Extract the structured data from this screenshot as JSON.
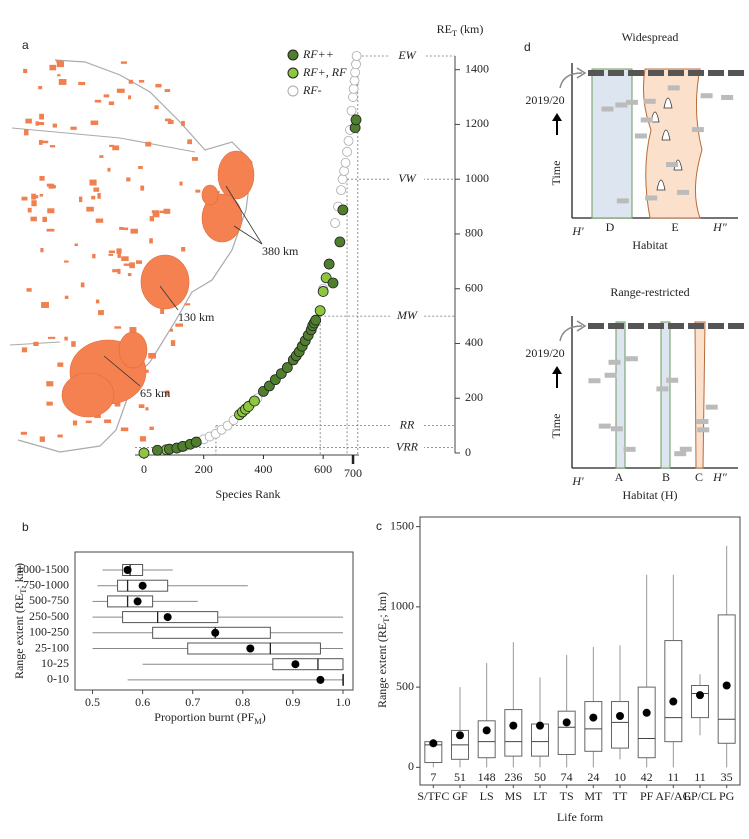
{
  "chart_data": [
    {
      "type": "scatter",
      "panel": "a",
      "y_label": [
        "RE",
        "T",
        " (km)"
      ],
      "x_label": "Species Rank",
      "xlim": [
        -30,
        720
      ],
      "ylim": [
        0,
        1450
      ],
      "xticks": [
        0,
        200,
        400,
        600,
        700
      ],
      "highlight_xtick": 700,
      "yticks": [
        0,
        200,
        400,
        600,
        800,
        1000,
        1200,
        1400
      ],
      "thresholds": [
        {
          "label": "EW",
          "value": 1450,
          "rank": 716
        },
        {
          "label": "VW",
          "value": 1000,
          "rank": 680
        },
        {
          "label": "MW",
          "value": 500,
          "rank": 590
        },
        {
          "label": "RR",
          "value": 100,
          "rank": 241
        },
        {
          "label": "VRR",
          "value": 20
        }
      ],
      "annotations": [
        "380 km",
        "130 km",
        "65 km"
      ],
      "series": [
        {
          "name": "RF-",
          "color": "#ffffff",
          "x": [
            120,
            140,
            160,
            180,
            200,
            220,
            240,
            260,
            280,
            300,
            360,
            380,
            600,
            640,
            650,
            660,
            665,
            670,
            675,
            680,
            685,
            690,
            695,
            700,
            702,
            705,
            707,
            710,
            712
          ],
          "values": [
            20,
            26,
            33,
            42,
            50,
            60,
            70,
            85,
            100,
            120,
            180,
            200,
            600,
            840,
            900,
            960,
            1000,
            1030,
            1060,
            1100,
            1140,
            1180,
            1250,
            1300,
            1330,
            1360,
            1390,
            1420,
            1450
          ]
        },
        {
          "name": "RF+, RF",
          "color": "#8dc63f",
          "x": [
            0,
            75,
            320,
            330,
            340,
            350,
            370,
            590,
            600,
            610
          ],
          "values": [
            0,
            12,
            140,
            150,
            160,
            170,
            190,
            520,
            590,
            640
          ]
        },
        {
          "name": "RF++",
          "color": "#4f7f2c",
          "x": [
            45,
            85,
            110,
            130,
            155,
            175,
            400,
            420,
            440,
            460,
            480,
            500,
            510,
            520,
            530,
            540,
            550,
            560,
            565,
            570,
            575,
            620,
            633,
            656,
            666,
            707,
            710
          ],
          "values": [
            10,
            14,
            18,
            24,
            32,
            40,
            225,
            245,
            268,
            290,
            312,
            340,
            355,
            370,
            390,
            410,
            430,
            450,
            465,
            475,
            485,
            690,
            621,
            771,
            888,
            1188,
            1217
          ]
        }
      ]
    },
    {
      "type": "box",
      "panel": "b",
      "orientation": "horizontal",
      "y_label": [
        "Range extent (RE",
        "T",
        "; km)"
      ],
      "x_label": [
        "Proportion burnt (PF",
        "M",
        ")"
      ],
      "xlim": [
        0.465,
        1.02
      ],
      "xticks": [
        0.5,
        0.6,
        0.7,
        0.8,
        0.9,
        {
          "value": 1,
          "label": "1.0"
        }
      ],
      "categories": [
        "1000-1500",
        "750-1000",
        "500-750",
        "250-500",
        "100-250",
        "25-100",
        "10-25",
        "0-10"
      ],
      "boxes": [
        {
          "min": 0.52,
          "q1": 0.56,
          "median": 0.575,
          "q3": 0.6,
          "max": 0.66,
          "mean": 0.57
        },
        {
          "min": 0.51,
          "q1": 0.55,
          "median": 0.57,
          "q3": 0.65,
          "max": 0.81,
          "mean": 0.6
        },
        {
          "min": 0.5,
          "q1": 0.53,
          "median": 0.57,
          "q3": 0.62,
          "max": 0.71,
          "mean": 0.59
        },
        {
          "min": 0.5,
          "q1": 0.56,
          "median": 0.63,
          "q3": 0.75,
          "max": 1.0,
          "mean": 0.65
        },
        {
          "min": 0.5,
          "q1": 0.62,
          "median": 0.745,
          "q3": 0.855,
          "max": 1.0,
          "mean": 0.745
        },
        {
          "min": 0.5,
          "q1": 0.69,
          "median": 0.855,
          "q3": 0.955,
          "max": 1.0,
          "mean": 0.815
        },
        {
          "min": 0.6,
          "q1": 0.86,
          "median": 0.95,
          "q3": 1.0,
          "max": 1.0,
          "mean": 0.905
        },
        {
          "min": 0.57,
          "q1": 1.0,
          "median": 1.0,
          "q3": 1.0,
          "max": 1.0,
          "mean": 0.955
        }
      ]
    },
    {
      "type": "box",
      "panel": "c",
      "orientation": "vertical",
      "y_label": [
        "Range extent (RE",
        "T",
        "; km)"
      ],
      "x_label": "Life form",
      "ylim": [
        -110,
        1560
      ],
      "yticks": [
        0,
        500,
        1000,
        1500
      ],
      "categories": [
        "S/TFC",
        "GF",
        "LS",
        "MS",
        "LT",
        "TS",
        "MT",
        "TT",
        "PF",
        "AF/AG",
        "EP/CL",
        "PG"
      ],
      "counts": [
        7,
        51,
        148,
        236,
        50,
        74,
        24,
        10,
        42,
        11,
        11,
        35
      ],
      "boxes": [
        {
          "min": 0,
          "q1": 30,
          "median": 140,
          "q3": 160,
          "max": 170,
          "mean": 150
        },
        {
          "min": 0,
          "q1": 50,
          "median": 140,
          "q3": 230,
          "max": 500,
          "mean": 200
        },
        {
          "min": 0,
          "q1": 60,
          "median": 160,
          "q3": 290,
          "max": 650,
          "mean": 230
        },
        {
          "min": 0,
          "q1": 70,
          "median": 160,
          "q3": 360,
          "max": 780,
          "mean": 260
        },
        {
          "min": 0,
          "q1": 70,
          "median": 160,
          "q3": 270,
          "max": 560,
          "mean": 260
        },
        {
          "min": 0,
          "q1": 80,
          "median": 250,
          "q3": 350,
          "max": 700,
          "mean": 280
        },
        {
          "min": 0,
          "q1": 100,
          "median": 240,
          "q3": 410,
          "max": 750,
          "mean": 310
        },
        {
          "min": 50,
          "q1": 120,
          "median": 280,
          "q3": 410,
          "max": 760,
          "mean": 320
        },
        {
          "min": 0,
          "q1": 60,
          "median": 180,
          "q3": 500,
          "max": 1200,
          "mean": 340
        },
        {
          "min": 0,
          "q1": 160,
          "median": 310,
          "q3": 790,
          "max": 1200,
          "mean": 410
        },
        {
          "min": 200,
          "q1": 310,
          "median": 460,
          "q3": 510,
          "max": 580,
          "mean": 450
        },
        {
          "min": 0,
          "q1": 150,
          "median": 300,
          "q3": 950,
          "max": 1380,
          "mean": 510
        }
      ]
    }
  ],
  "diagram": {
    "panel": "d",
    "panels": [
      {
        "title": "Widespread",
        "time_marker": "2019/20",
        "y_label": "Time",
        "x_left": "H'",
        "x_right": "H\"",
        "x_label": "Habitat",
        "habitats": [
          "D",
          "E"
        ]
      },
      {
        "title": "Range-restricted",
        "time_marker": "2019/20",
        "y_label": "Time",
        "x_left": "H'",
        "x_right": "H\"",
        "x_label": "Habitat (H)",
        "habitats": [
          "A",
          "B",
          "C"
        ]
      }
    ]
  }
}
